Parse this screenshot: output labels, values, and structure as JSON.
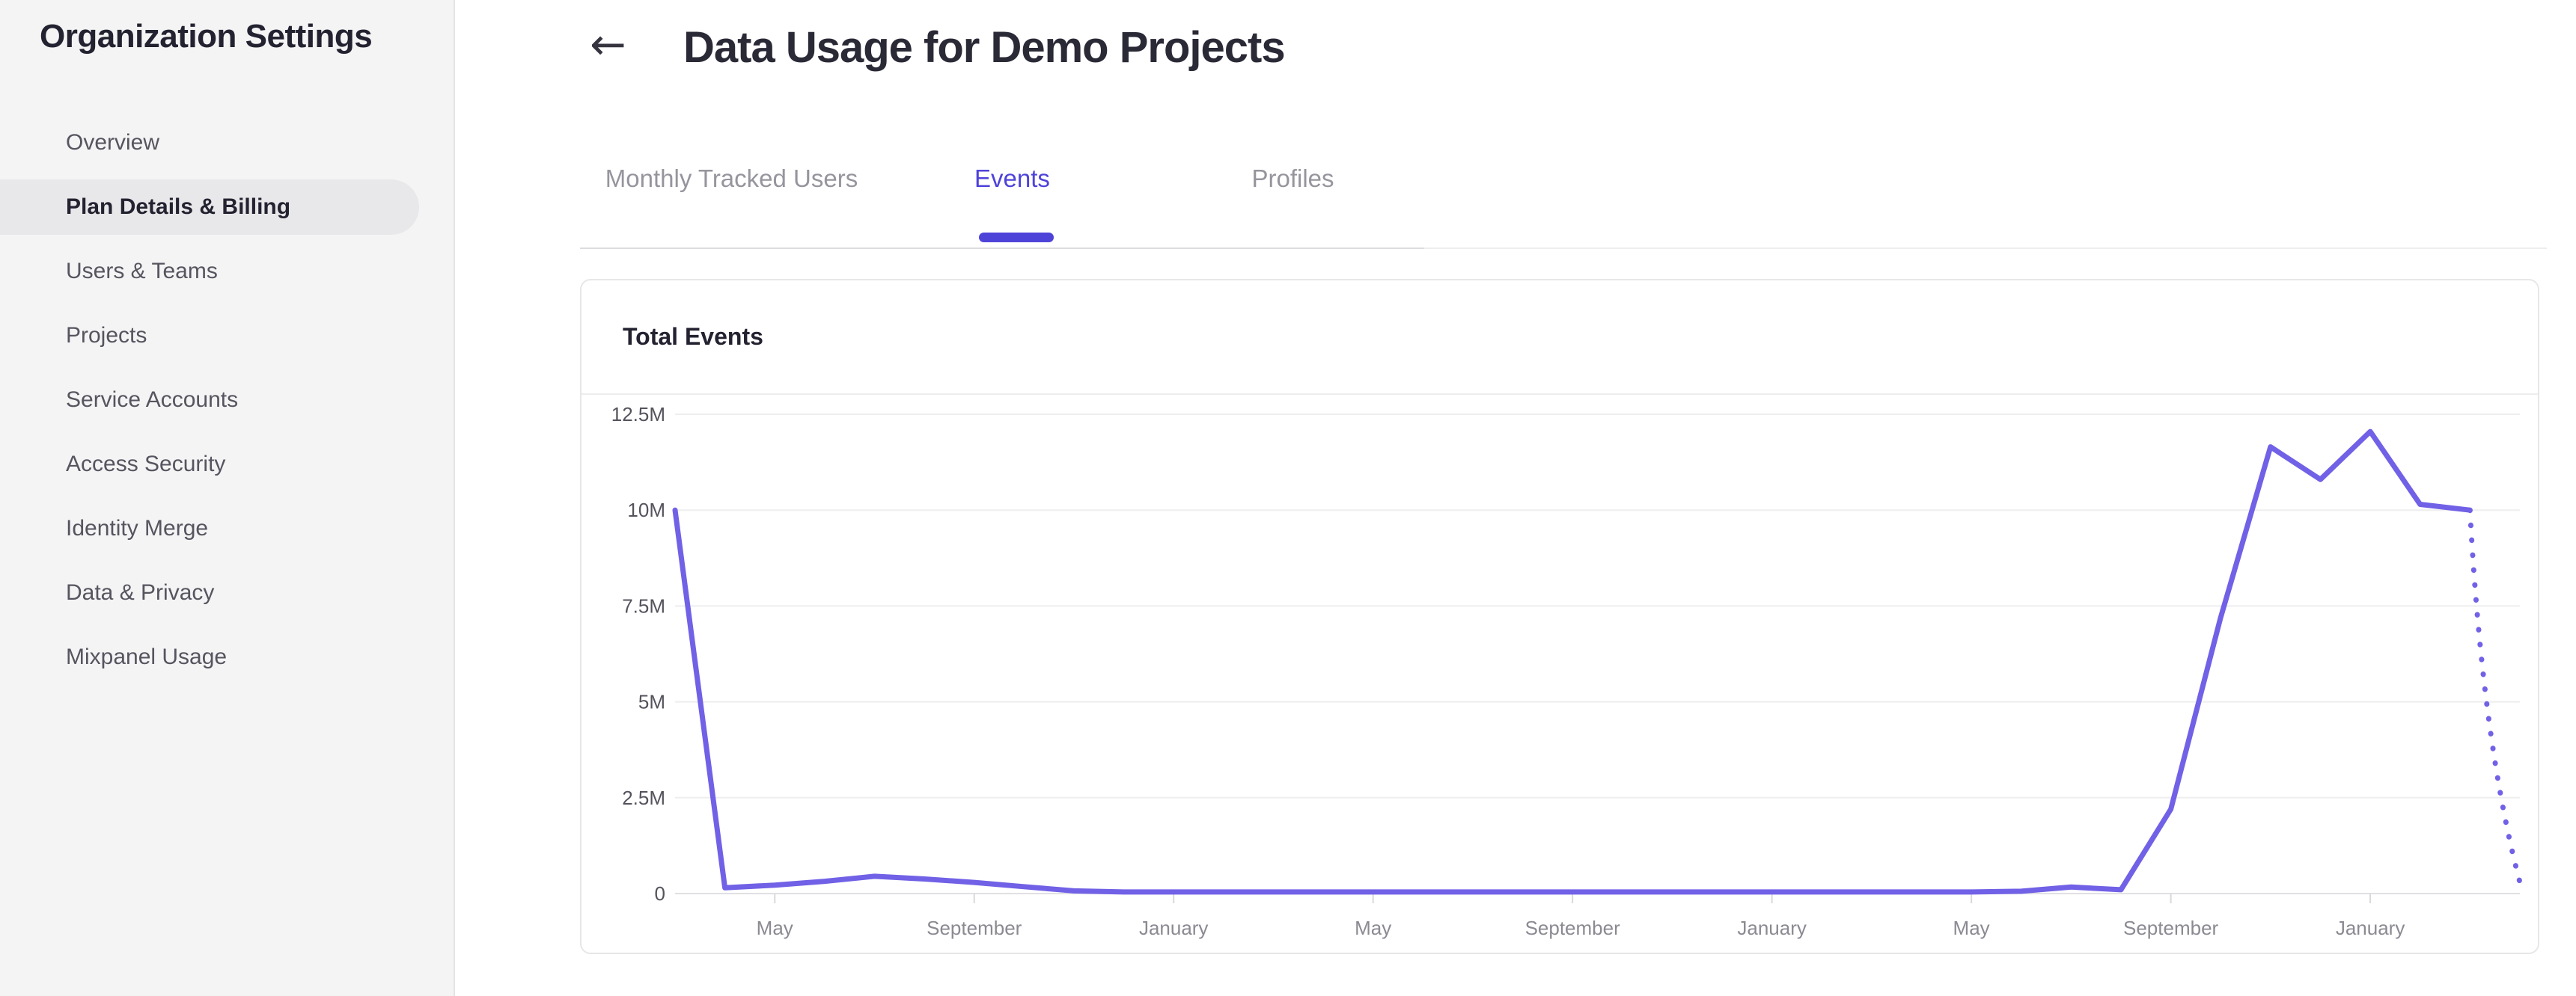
{
  "sidebar": {
    "title": "Organization Settings",
    "items": [
      {
        "label": "Overview",
        "selected": false
      },
      {
        "label": "Plan Details & Billing",
        "selected": true
      },
      {
        "label": "Users & Teams",
        "selected": false
      },
      {
        "label": "Projects",
        "selected": false
      },
      {
        "label": "Service Accounts",
        "selected": false
      },
      {
        "label": "Access Security",
        "selected": false
      },
      {
        "label": "Identity Merge",
        "selected": false
      },
      {
        "label": "Data & Privacy",
        "selected": false
      },
      {
        "label": "Mixpanel Usage",
        "selected": false
      }
    ]
  },
  "header": {
    "back_icon": "←",
    "title": "Data Usage for Demo Projects"
  },
  "tabs": {
    "items": [
      {
        "label": "Monthly Tracked Users",
        "active": false
      },
      {
        "label": "Events",
        "active": true
      },
      {
        "label": "Profiles",
        "active": false
      }
    ]
  },
  "card": {
    "title": "Total Events"
  },
  "colors": {
    "accent": "#4e43d9",
    "chart_line": "#7161e6"
  },
  "chart_data": {
    "type": "line",
    "title": "Total Events",
    "unit": "events, millions (M)",
    "x_mode": "monthly points; labeled ticks every 4 months",
    "ylim": [
      0,
      12.5
    ],
    "grid": "horizontal",
    "legend": "none",
    "y_tick_labels": [
      "12.5M",
      "10M",
      "7.5M",
      "5M",
      "2.5M",
      "0"
    ],
    "y_tick_values": [
      12.5,
      10,
      7.5,
      5,
      2.5,
      0
    ],
    "x_tick_labels": [
      "May",
      "September",
      "January",
      "May",
      "September",
      "January",
      "May",
      "September",
      "January"
    ],
    "x_tick_month_indices": [
      2,
      6,
      10,
      14,
      18,
      22,
      26,
      30,
      34
    ],
    "total_month_span": 37,
    "series": [
      {
        "name": "actual",
        "style": "solid",
        "start_month_index": 0,
        "values_millions": [
          10,
          0.15,
          0.22,
          0.32,
          0.45,
          0.38,
          0.29,
          0.18,
          0.07,
          0.04,
          0.04,
          0.04,
          0.04,
          0.04,
          0.04,
          0.04,
          0.04,
          0.04,
          0.04,
          0.04,
          0.04,
          0.04,
          0.04,
          0.04,
          0.04,
          0.04,
          0.04,
          0.06,
          0.17,
          0.1,
          2.2,
          7.2,
          11.65,
          10.8,
          12.05,
          10.15,
          10.0
        ]
      },
      {
        "name": "projection",
        "style": "dotted",
        "start_month_index": 36,
        "values_millions": [
          10.0,
          0.3
        ]
      }
    ]
  }
}
